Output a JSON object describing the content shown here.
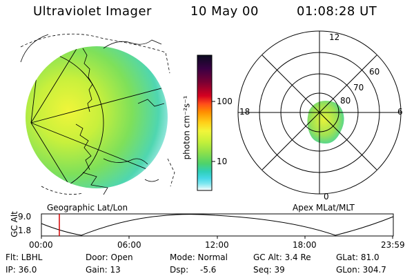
{
  "header": {
    "instrument": "Ultraviolet Imager",
    "date": "10 May 00",
    "time": "01:08:28 UT"
  },
  "left_panel": {
    "label": "Geographic Lat/Lon"
  },
  "colorbar": {
    "unit_label": "photon cm⁻²s⁻¹",
    "ticks": [
      "100",
      "10"
    ],
    "colors": [
      "#0b0b20",
      "#3a0044",
      "#7a0033",
      "#d40020",
      "#ff4d1a",
      "#ff8f00",
      "#ffd21a",
      "#f2f53a",
      "#c5f03a",
      "#8ee04a",
      "#4fd36a",
      "#2fd0b8",
      "#46d8e6",
      "#7fe7f0",
      "#c9f4f7",
      "#ffffff"
    ]
  },
  "right_panel": {
    "label": "Apex MLat/MLT",
    "mlt_labels": {
      "top": "12",
      "bottom": "0",
      "left": "18",
      "right": "6"
    },
    "mlat_labels": [
      "80",
      "70",
      "60"
    ]
  },
  "timeline": {
    "ylabel": "GC Alt",
    "y_ticks": [
      "9.0",
      "1.8"
    ],
    "x_ticks": [
      "00:00",
      "06:00",
      "12:00",
      "18:00",
      "23:59"
    ],
    "marker_color": "#d40000"
  },
  "info": {
    "row1": {
      "flt": "Flt: LBHL",
      "door": "Door: Open",
      "mode": "Mode: Normal",
      "gcalt": "GC Alt: 3.4 Re",
      "glat": "GLat: 81.0"
    },
    "row2": {
      "ip": "IP: 36.0",
      "gain": "Gain: 13",
      "dsp_label": "Dsp:",
      "dsp_value": "-5.6",
      "seq": "Seq: 39",
      "glon": "GLon: 304.7"
    }
  }
}
